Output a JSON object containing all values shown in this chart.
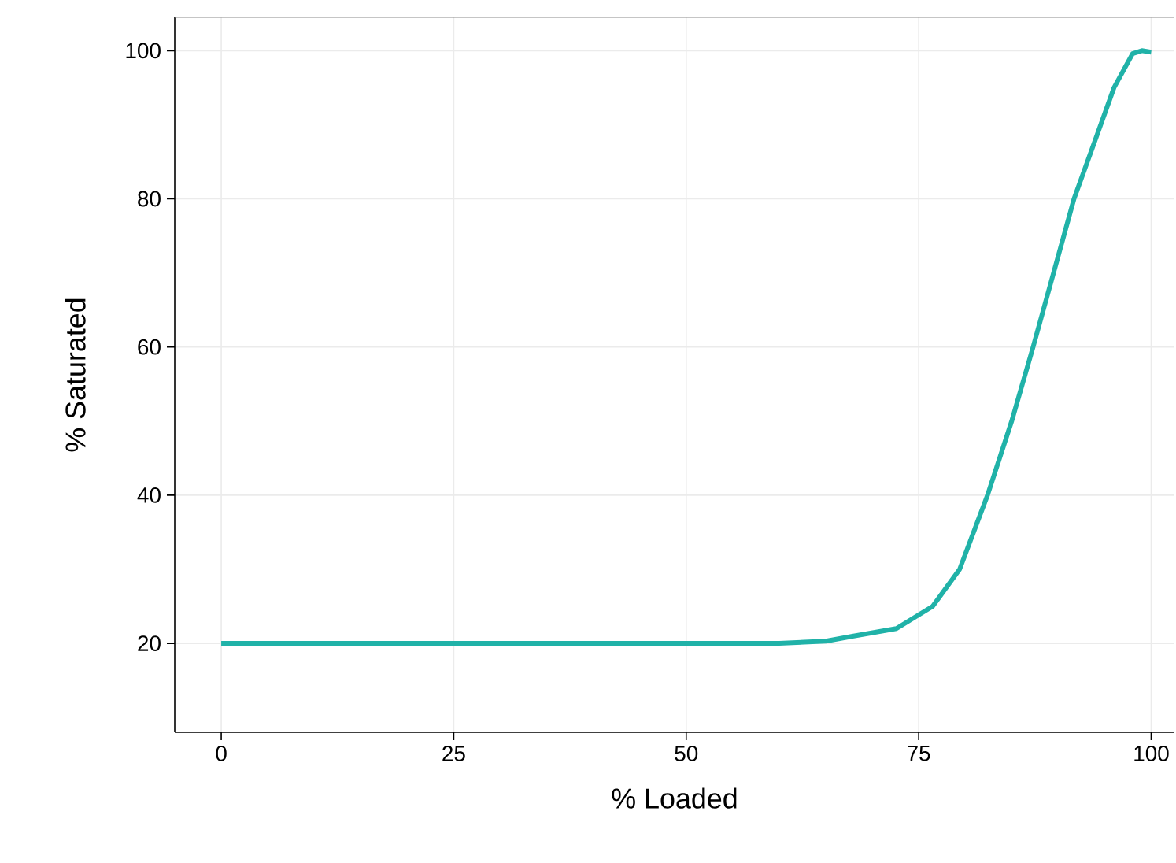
{
  "chart_data": {
    "type": "line",
    "xlabel": "% Loaded",
    "ylabel": "% Saturated",
    "x": [
      0,
      20,
      40,
      60,
      65,
      68,
      72.6,
      76.5,
      79.4,
      82.4,
      85,
      87.3,
      89.5,
      91.7,
      94,
      96,
      98,
      99,
      100
    ],
    "values": [
      20,
      20,
      20,
      20,
      20.3,
      21,
      22,
      25,
      30,
      40,
      50,
      60,
      70,
      80,
      88,
      95,
      99.6,
      100,
      99.8
    ],
    "color": "#20b2a8",
    "xlim": [
      -5,
      102.5
    ],
    "ylim": [
      8,
      104.5
    ],
    "xticks": [
      0,
      25,
      50,
      75,
      100
    ],
    "yticks": [
      20,
      40,
      60,
      80,
      100
    ],
    "grid": true
  }
}
